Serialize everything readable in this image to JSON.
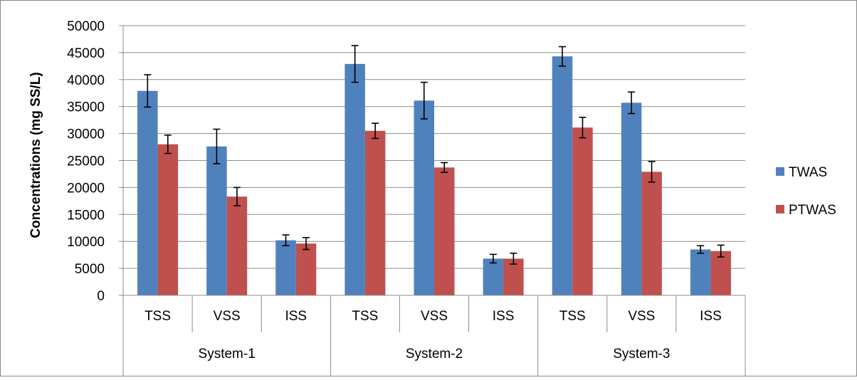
{
  "chart_data": {
    "type": "bar",
    "ylabel": "Concentrations (mg SS/L)",
    "ylim": [
      0,
      50000
    ],
    "yticks": [
      0,
      5000,
      10000,
      15000,
      20000,
      25000,
      30000,
      35000,
      40000,
      45000,
      50000
    ],
    "groups": [
      "System-1",
      "System-2",
      "System-3"
    ],
    "categories": [
      "TSS",
      "VSS",
      "ISS",
      "TSS",
      "VSS",
      "ISS",
      "TSS",
      "VSS",
      "ISS"
    ],
    "series": [
      {
        "name": "TWAS",
        "color": "#4F81BD",
        "values": [
          37900,
          27600,
          10200,
          42900,
          36100,
          6800,
          44300,
          35700,
          8500
        ],
        "errors": [
          3000,
          3200,
          1000,
          3400,
          3400,
          800,
          1800,
          2000,
          700
        ]
      },
      {
        "name": "PTWAS",
        "color": "#C0504D",
        "values": [
          28000,
          18300,
          9600,
          30500,
          23700,
          6800,
          31100,
          22900,
          8200
        ],
        "errors": [
          1700,
          1700,
          1100,
          1400,
          900,
          1000,
          1900,
          1900,
          1100
        ]
      }
    ],
    "grid": true,
    "legend_position": "right"
  }
}
